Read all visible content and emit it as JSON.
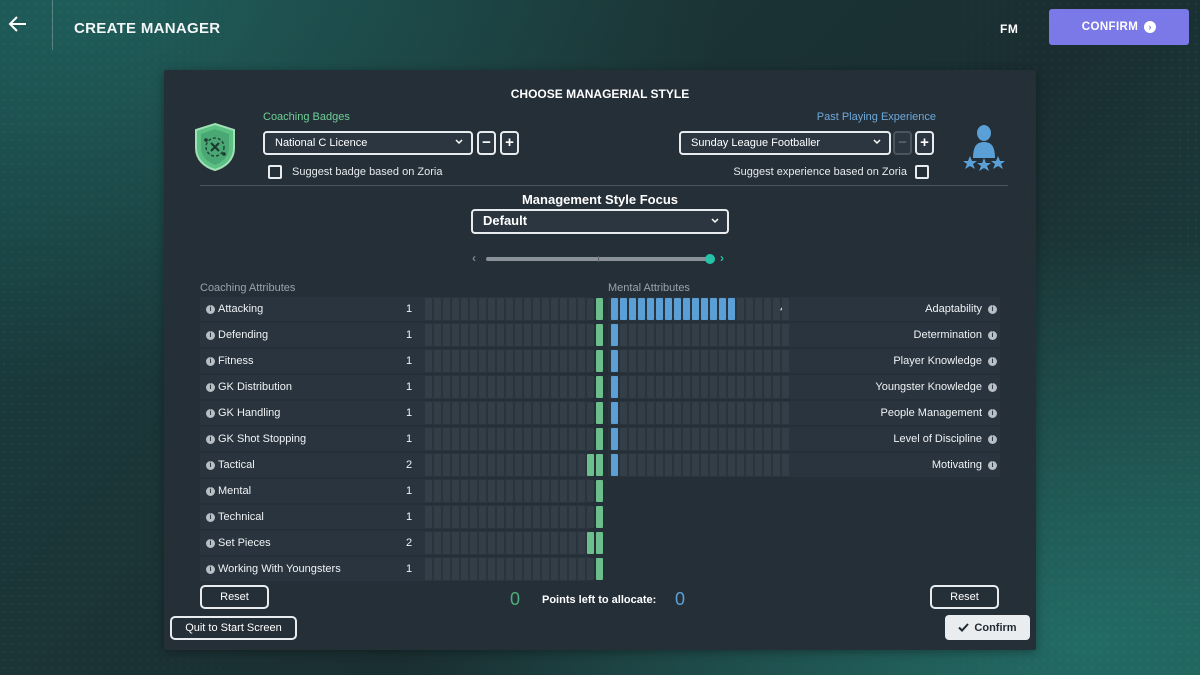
{
  "header": {
    "title": "CREATE MANAGER",
    "logo": "FM",
    "confirm_label": "CONFIRM"
  },
  "panel": {
    "title": "CHOOSE MANAGERIAL STYLE",
    "coaching_badges": {
      "label": "Coaching Badges",
      "selected": "National C Licence",
      "suggest_label": "Suggest badge based on Zoria"
    },
    "past_playing": {
      "label": "Past Playing Experience",
      "selected": "Sunday League Footballer",
      "suggest_label": "Suggest experience based on Zoria"
    },
    "focus": {
      "title": "Management Style Focus",
      "selected": "Default",
      "slider_value": 1.0
    },
    "coaching": {
      "heading": "Coaching Attributes",
      "max": 20,
      "items": [
        {
          "name": "Attacking",
          "value": 1
        },
        {
          "name": "Defending",
          "value": 1
        },
        {
          "name": "Fitness",
          "value": 1
        },
        {
          "name": "GK Distribution",
          "value": 1
        },
        {
          "name": "GK Handling",
          "value": 1
        },
        {
          "name": "GK Shot Stopping",
          "value": 1
        },
        {
          "name": "Tactical",
          "value": 2
        },
        {
          "name": "Mental",
          "value": 1
        },
        {
          "name": "Technical",
          "value": 1
        },
        {
          "name": "Set Pieces",
          "value": 2
        },
        {
          "name": "Working With Youngsters",
          "value": 1
        }
      ]
    },
    "mental": {
      "heading": "Mental Attributes",
      "max": 20,
      "items": [
        {
          "name": "Adaptability",
          "value": 14
        },
        {
          "name": "Determination",
          "value": 1
        },
        {
          "name": "Player Knowledge",
          "value": 1
        },
        {
          "name": "Youngster Knowledge",
          "value": 1
        },
        {
          "name": "People Management",
          "value": 1
        },
        {
          "name": "Level of Discipline",
          "value": 1
        },
        {
          "name": "Motivating",
          "value": 1
        }
      ]
    },
    "reset_label": "Reset",
    "points_left_coaching": "0",
    "points_label": "Points left to allocate:",
    "points_left_mental": "0",
    "quit_label": "Quit to Start Screen",
    "confirm_label": "Confirm"
  },
  "colors": {
    "accent": "#7b78e8",
    "coaching_bar": "#6cbf8c",
    "mental_bar": "#5aa0d6",
    "slider_knob": "#26c3a8"
  },
  "icons": [
    "back-arrow-icon",
    "chevron-down-icon",
    "info-icon",
    "check-icon",
    "coaching-badge-icon",
    "player-stars-icon"
  ]
}
